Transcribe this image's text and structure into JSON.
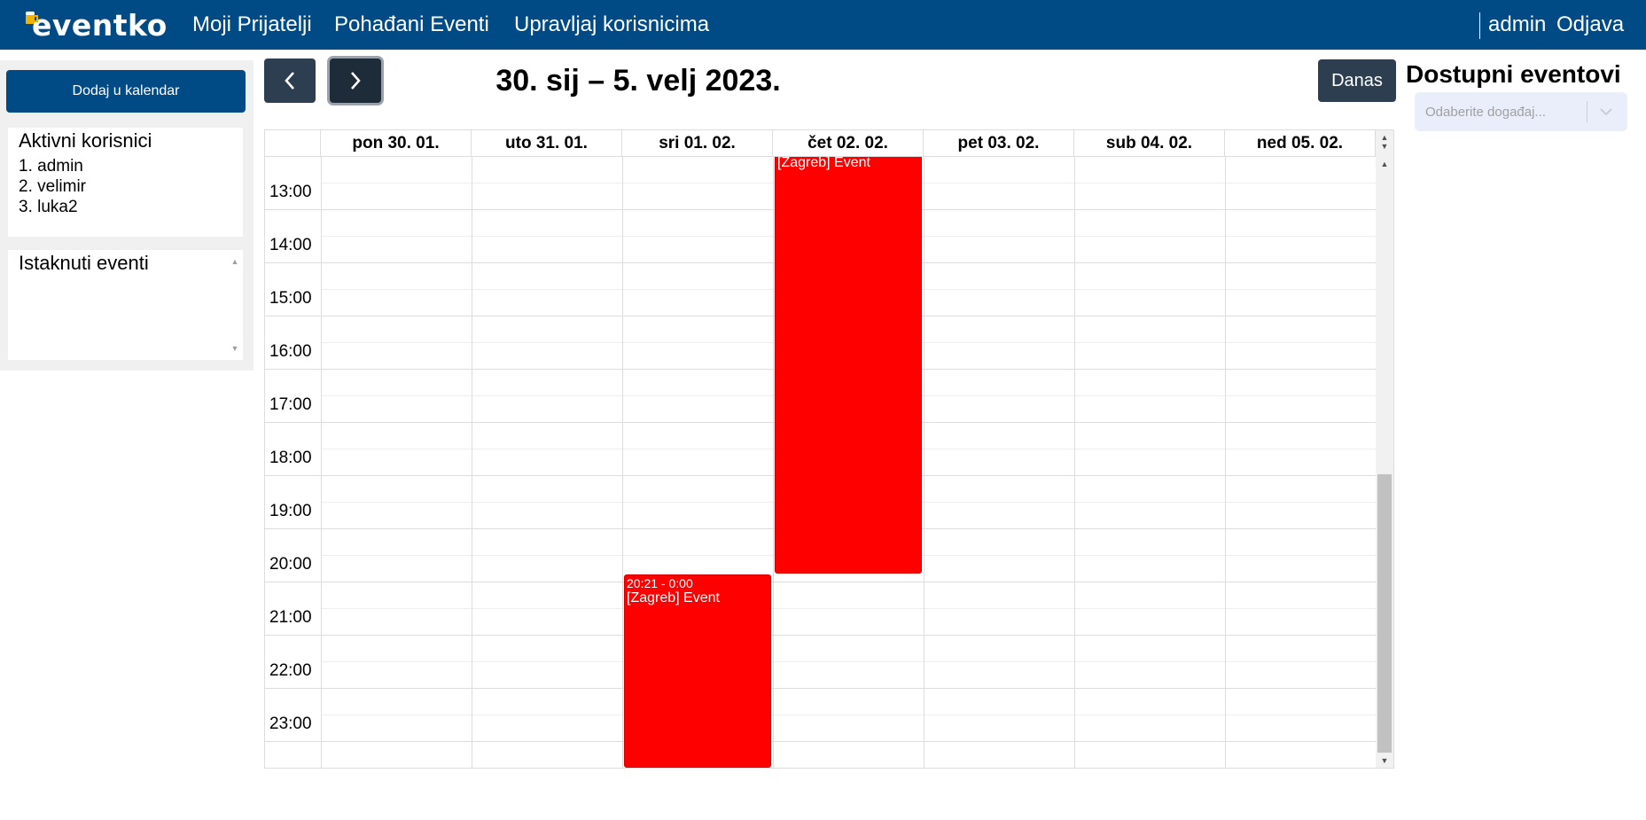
{
  "navbar": {
    "logo_text": "eventko",
    "links": [
      "Moji Prijatelji",
      "Pohađani Eventi",
      "Upravljaj korisnicima"
    ],
    "username": "admin",
    "logout_label": "Odjava"
  },
  "sidebar": {
    "add_button_label": "Dodaj u kalendar",
    "active_users_title": "Aktivni korisnici",
    "active_users": [
      "1. admin",
      "2. velimir",
      "3. luka2"
    ],
    "featured_title": "Istaknuti eventi"
  },
  "calendar": {
    "title": "30. sij – 5. velj 2023.",
    "today_label": "Danas",
    "days": [
      "pon 30. 01.",
      "uto 31. 01.",
      "sri 01. 02.",
      "čet 02. 02.",
      "pet 03. 02.",
      "sub 04. 02.",
      "ned 05. 02."
    ],
    "hours": [
      "13:00",
      "14:00",
      "15:00",
      "16:00",
      "17:00",
      "18:00",
      "19:00",
      "20:00",
      "21:00",
      "22:00",
      "23:00"
    ],
    "events": [
      {
        "day": "čet 02. 02.",
        "time": "",
        "title": "[Zagreb] Event",
        "color": "#ff0000"
      },
      {
        "day": "sri 01. 02.",
        "time": "20:21 - 0:00",
        "title": "[Zagreb] Event",
        "color": "#ff0000"
      }
    ]
  },
  "right_panel": {
    "title": "Dostupni eventovi",
    "select_placeholder": "Odaberite događaj..."
  },
  "colors": {
    "primary": "#004a85",
    "button_dark": "#2c3e50",
    "event": "#ff0000"
  }
}
